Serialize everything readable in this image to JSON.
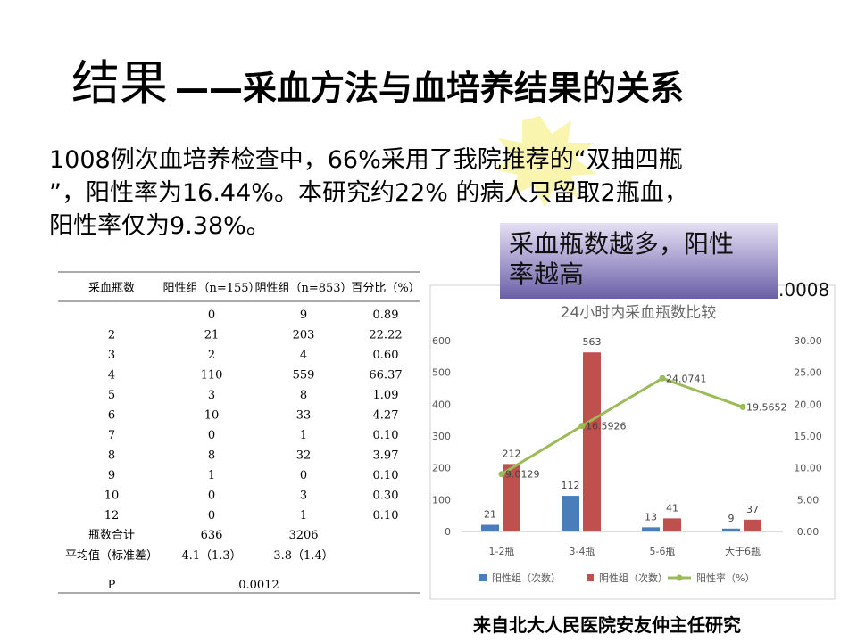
{
  "title": {
    "main": "结果",
    "rest": "——采血方法与血培养结果的关系"
  },
  "paragraph": {
    "lines": [
      "1008例次血培养检查中，66%采用了我院推荐的“双抽四瓶",
      "”，阳性率为16.44%。本研究约22% 的病人只留取2瓶血，",
      "阳性率仅为9.38%。"
    ]
  },
  "callout": {
    "lines": [
      "采血瓶数越多，阳性",
      "率越高"
    ]
  },
  "note": ".0008",
  "table": {
    "headers": [
      "采血瓶数",
      "阳性组（n=155）",
      "阴性组（n=853）",
      "百分比（%）"
    ],
    "rows": [
      [
        null,
        "0",
        "9",
        "0.89"
      ],
      [
        "2",
        "21",
        "203",
        "22.22"
      ],
      [
        "3",
        "2",
        "4",
        "0.60"
      ],
      [
        "4",
        "110",
        "559",
        "66.37"
      ],
      [
        "5",
        "3",
        "8",
        "1.09"
      ],
      [
        "6",
        "10",
        "33",
        "4.27"
      ],
      [
        "7",
        "0",
        "1",
        "0.10"
      ],
      [
        "8",
        "8",
        "32",
        "3.97"
      ],
      [
        "9",
        "1",
        "0",
        "0.10"
      ],
      [
        "10",
        "0",
        "3",
        "0.30"
      ],
      [
        "12",
        "0",
        "1",
        "0.10"
      ],
      [
        "瓶数合计",
        "636",
        "3206"
      ],
      [
        "平均值（标准差）",
        "4.1（1.3）",
        "3.8（1.4）"
      ],
      [
        "P",
        "0.0012"
      ]
    ]
  },
  "chart_data": {
    "type": "bar",
    "title": "24小时内采血瓶数比较",
    "categories": [
      "1-2瓶",
      "3-4瓶",
      "5-6瓶",
      "大于6瓶"
    ],
    "series": [
      {
        "name": "阳性组（次数）",
        "type": "bar",
        "color": "#4a7ebb",
        "values": [
          21,
          112,
          13,
          9
        ]
      },
      {
        "name": "阴性组（次数）",
        "type": "bar",
        "color": "#c0504d",
        "values": [
          212,
          563,
          41,
          37
        ]
      },
      {
        "name": "阳性率（%）",
        "type": "line",
        "axis": "y2",
        "color": "#9bbb59",
        "values": [
          9.0129,
          16.5926,
          24.0741,
          19.5652
        ]
      }
    ],
    "ylim": [
      0,
      600
    ],
    "yticks": [
      0,
      100,
      200,
      300,
      400,
      500,
      600
    ],
    "y2lim": [
      0,
      30
    ],
    "y2ticks": [
      {
        "value": 0,
        "label": "0.00"
      },
      {
        "value": 5,
        "label": "5.00"
      },
      {
        "value": 10,
        "label": "10.00"
      },
      {
        "value": 15,
        "label": "15.00"
      },
      {
        "value": 20,
        "label": "20.00"
      },
      {
        "value": 25,
        "label": "25.00"
      },
      {
        "value": 30,
        "label": "30.00"
      }
    ],
    "legend": "bottom"
  },
  "footer": "来自北大人民医院安友仲主任研究"
}
